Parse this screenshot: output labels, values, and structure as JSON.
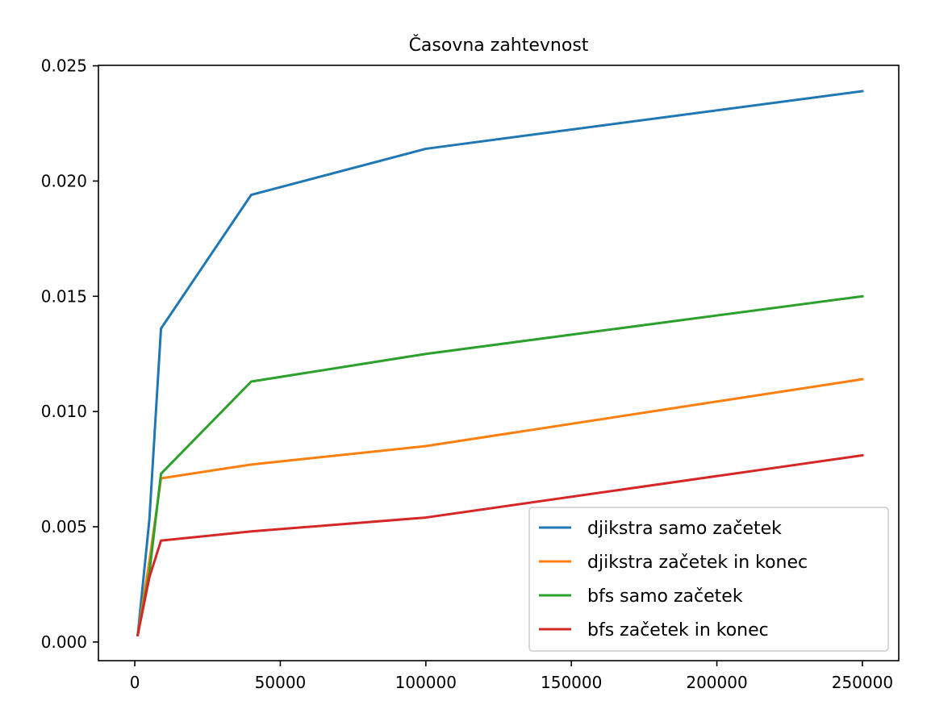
{
  "chart_data": {
    "type": "line",
    "title": "Časovna zahtevnost",
    "xlabel": "",
    "ylabel": "",
    "xlim": [
      -12500,
      262500
    ],
    "ylim": [
      -0.00081,
      0.02502
    ],
    "x_ticks": [
      0,
      50000,
      100000,
      150000,
      200000,
      250000
    ],
    "x_tick_labels": [
      "0",
      "50000",
      "100000",
      "150000",
      "200000",
      "250000"
    ],
    "y_ticks": [
      0.0,
      0.005,
      0.01,
      0.015,
      0.02,
      0.025
    ],
    "y_tick_labels": [
      "0.000",
      "0.005",
      "0.010",
      "0.015",
      "0.020",
      "0.025"
    ],
    "grid": false,
    "legend_position": "lower right",
    "series": [
      {
        "name": "djikstra samo začetek",
        "color": "#1f77b4",
        "x": [
          1000,
          5000,
          9000,
          40000,
          100000,
          250000
        ],
        "y": [
          0.0003,
          0.0053,
          0.0136,
          0.0194,
          0.0214,
          0.0239
        ]
      },
      {
        "name": "djikstra začetek in konec",
        "color": "#ff7f0e",
        "x": [
          1000,
          5000,
          9000,
          40000,
          100000,
          250000
        ],
        "y": [
          0.0003,
          0.0035,
          0.0071,
          0.0077,
          0.0085,
          0.0114
        ]
      },
      {
        "name": "bfs samo začetek",
        "color": "#2ca02c",
        "x": [
          1000,
          5000,
          9000,
          40000,
          100000,
          250000
        ],
        "y": [
          0.0003,
          0.003,
          0.0073,
          0.0113,
          0.0125,
          0.015
        ]
      },
      {
        "name": "bfs začetek in konec",
        "color": "#d62728",
        "x": [
          1000,
          5000,
          9000,
          40000,
          100000,
          250000
        ],
        "y": [
          0.0003,
          0.0028,
          0.0044,
          0.0048,
          0.0054,
          0.0081
        ]
      }
    ]
  }
}
